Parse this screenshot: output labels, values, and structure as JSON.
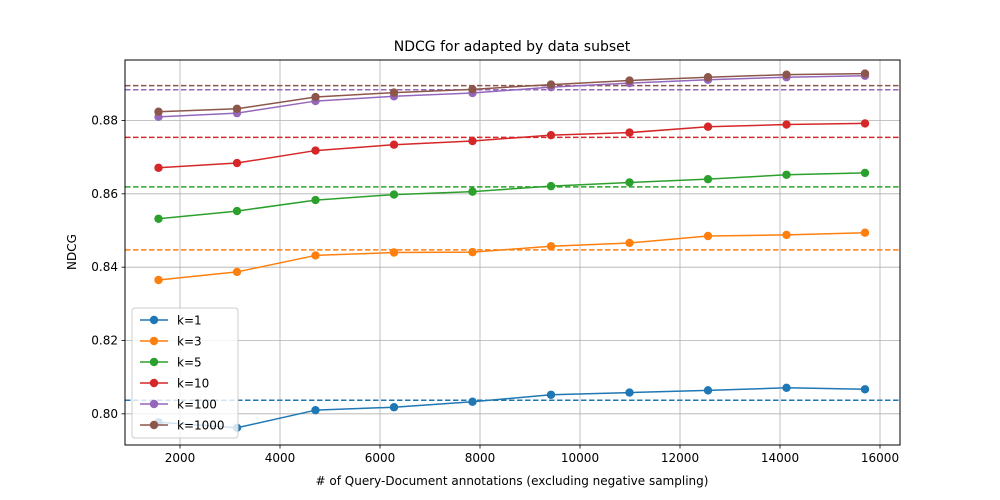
{
  "chart_data": {
    "type": "line",
    "title": "NDCG for adapted by data subset",
    "xlabel": "# of Query-Document annotations (excluding negative sampling)",
    "ylabel": "NDCG",
    "xlim": [
      900,
      16400
    ],
    "ylim": [
      0.7915,
      0.8965
    ],
    "xticks": [
      2000,
      4000,
      6000,
      8000,
      10000,
      12000,
      14000,
      16000
    ],
    "yticks": [
      0.8,
      0.82,
      0.84,
      0.86,
      0.88
    ],
    "ytick_labels": [
      "0.80",
      "0.82",
      "0.84",
      "0.86",
      "0.88"
    ],
    "grid": true,
    "legend_position": "lower-left",
    "x": [
      1570,
      3140,
      4710,
      6280,
      7850,
      9420,
      10990,
      12560,
      14130,
      15700
    ],
    "series": [
      {
        "name": "k=1",
        "color": "#1f77b4",
        "values": [
          0.7977,
          0.7962,
          0.801,
          0.8018,
          0.8033,
          0.8052,
          0.8058,
          0.8064,
          0.8071,
          0.8067
        ],
        "baseline": 0.8037
      },
      {
        "name": "k=3",
        "color": "#ff7f0e",
        "values": [
          0.8365,
          0.8387,
          0.8432,
          0.844,
          0.8441,
          0.8457,
          0.8466,
          0.8485,
          0.8488,
          0.8494
        ],
        "baseline": 0.8447
      },
      {
        "name": "k=5",
        "color": "#2ca02c",
        "values": [
          0.8532,
          0.8553,
          0.8583,
          0.8598,
          0.8606,
          0.8621,
          0.8631,
          0.864,
          0.8652,
          0.8657
        ],
        "baseline": 0.8619
      },
      {
        "name": "k=10",
        "color": "#d62728",
        "values": [
          0.8671,
          0.8684,
          0.8718,
          0.8734,
          0.8744,
          0.876,
          0.8767,
          0.8783,
          0.8789,
          0.8792
        ],
        "baseline": 0.8754
      },
      {
        "name": "k=100",
        "color": "#9467bd",
        "values": [
          0.881,
          0.882,
          0.8853,
          0.8866,
          0.8875,
          0.8891,
          0.8902,
          0.8911,
          0.8918,
          0.8922
        ],
        "baseline": 0.8884
      },
      {
        "name": "k=1000",
        "color": "#8c564b",
        "values": [
          0.8824,
          0.8832,
          0.8864,
          0.8876,
          0.8885,
          0.8898,
          0.8909,
          0.8918,
          0.8925,
          0.8928
        ],
        "baseline": 0.8895
      }
    ]
  }
}
